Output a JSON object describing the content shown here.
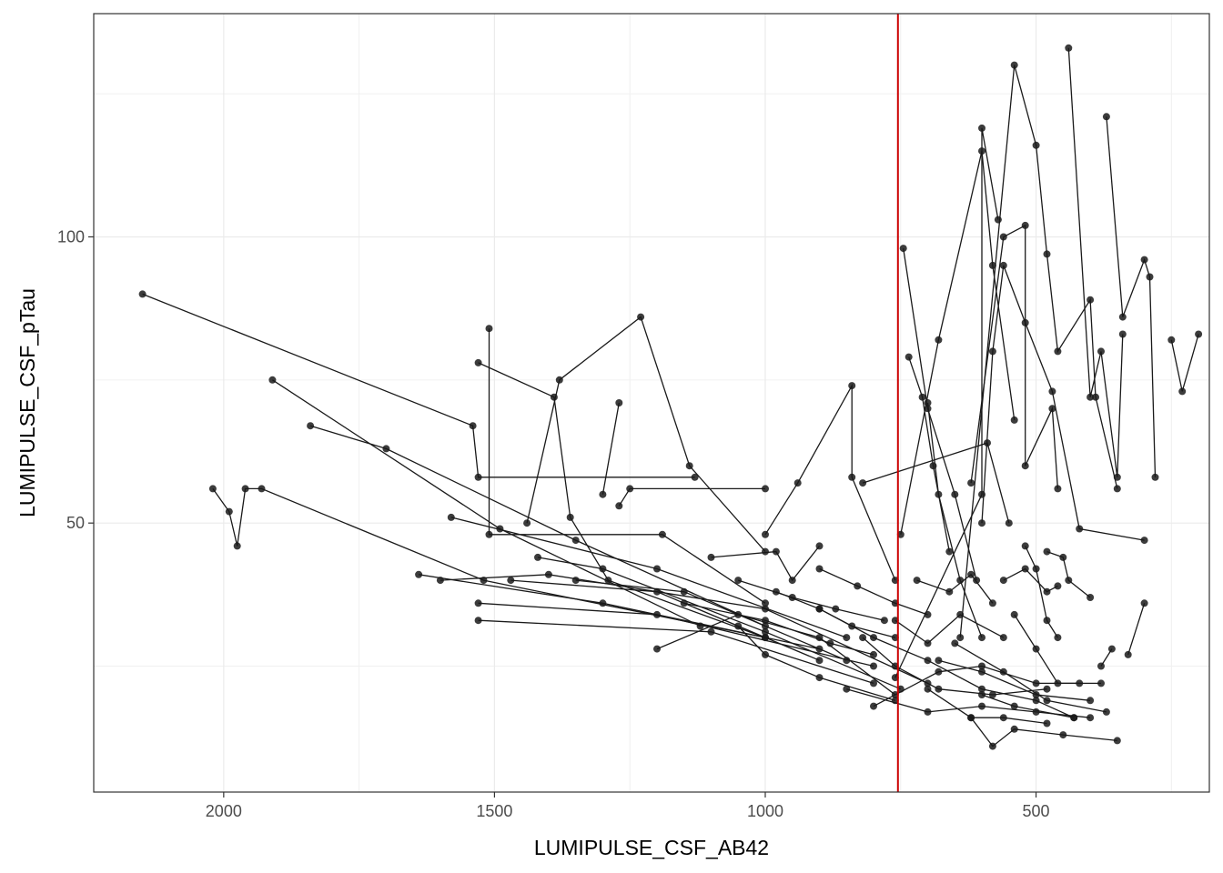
{
  "chart_data": {
    "type": "scatter",
    "title": "",
    "xlabel": "LUMIPULSE_CSF_AB42",
    "ylabel": "LUMIPULSE_CSF_pTau",
    "x_reversed": true,
    "xlim": [
      2240,
      180
    ],
    "ylim": [
      3,
      139
    ],
    "x_ticks": [
      2000,
      1500,
      1000,
      500
    ],
    "x_tick_labels": [
      "2000",
      "1500",
      "1000",
      "500"
    ],
    "y_ticks": [
      50,
      100
    ],
    "y_tick_labels": [
      "50",
      "100"
    ],
    "grid": true,
    "legend": "none",
    "cutoff_line": {
      "axis": "x",
      "value": 755,
      "color": "#cc0000"
    },
    "point_color": "#1a1a1a",
    "line_color": "#1a1a1a",
    "trajectories": [
      [
        [
          2150,
          90
        ],
        [
          1540,
          67
        ],
        [
          1530,
          58
        ],
        [
          1130,
          58
        ]
      ],
      [
        [
          1910,
          75
        ],
        [
          1490,
          49
        ],
        [
          1120,
          32
        ]
      ],
      [
        [
          1840,
          67
        ],
        [
          1700,
          63
        ],
        [
          1350,
          47
        ],
        [
          1000,
          32
        ]
      ],
      [
        [
          2020,
          56
        ],
        [
          1990,
          52
        ],
        [
          1975,
          46
        ],
        [
          1960,
          56
        ],
        [
          1930,
          56
        ],
        [
          1520,
          40
        ],
        [
          1000,
          30
        ]
      ],
      [
        [
          1510,
          84
        ],
        [
          1510,
          48
        ],
        [
          1190,
          48
        ],
        [
          1000,
          36
        ]
      ],
      [
        [
          1530,
          78
        ],
        [
          1390,
          72
        ],
        [
          1360,
          51
        ],
        [
          1290,
          40
        ],
        [
          1000,
          30
        ]
      ],
      [
        [
          1440,
          50
        ],
        [
          1380,
          75
        ],
        [
          1230,
          86
        ],
        [
          1140,
          60
        ],
        [
          1000,
          45
        ]
      ],
      [
        [
          1300,
          55
        ],
        [
          1270,
          71
        ]
      ],
      [
        [
          1270,
          53
        ],
        [
          1250,
          56
        ],
        [
          1000,
          56
        ]
      ],
      [
        [
          1640,
          41
        ],
        [
          1300,
          36
        ],
        [
          900,
          28
        ]
      ],
      [
        [
          1580,
          51
        ],
        [
          1200,
          42
        ],
        [
          850,
          30
        ]
      ],
      [
        [
          1530,
          33
        ],
        [
          1100,
          31
        ],
        [
          800,
          22
        ]
      ],
      [
        [
          1530,
          36
        ],
        [
          1200,
          34
        ],
        [
          800,
          25
        ]
      ],
      [
        [
          1600,
          40
        ],
        [
          1400,
          41
        ],
        [
          1000,
          35
        ],
        [
          700,
          22
        ]
      ],
      [
        [
          1470,
          40
        ],
        [
          1200,
          38
        ],
        [
          900,
          26
        ]
      ],
      [
        [
          1420,
          44
        ],
        [
          1300,
          42
        ],
        [
          1000,
          31
        ],
        [
          750,
          21
        ]
      ],
      [
        [
          1350,
          40
        ],
        [
          1150,
          38
        ],
        [
          850,
          26
        ]
      ],
      [
        [
          1200,
          28
        ],
        [
          1050,
          34
        ],
        [
          900,
          30
        ],
        [
          760,
          20
        ]
      ],
      [
        [
          1100,
          44
        ],
        [
          980,
          45
        ],
        [
          950,
          40
        ],
        [
          900,
          46
        ]
      ],
      [
        [
          1000,
          48
        ],
        [
          940,
          57
        ],
        [
          840,
          74
        ],
        [
          840,
          58
        ],
        [
          760,
          40
        ]
      ],
      [
        [
          1050,
          32
        ],
        [
          1000,
          27
        ],
        [
          900,
          23
        ],
        [
          760,
          19
        ]
      ],
      [
        [
          820,
          57
        ],
        [
          590,
          64
        ],
        [
          550,
          50
        ]
      ],
      [
        [
          745,
          98
        ],
        [
          700,
          70
        ],
        [
          650,
          55
        ],
        [
          610,
          40
        ]
      ],
      [
        [
          735,
          79
        ],
        [
          710,
          72
        ],
        [
          690,
          60
        ],
        [
          660,
          45
        ]
      ],
      [
        [
          700,
          71
        ],
        [
          680,
          55
        ],
        [
          640,
          40
        ],
        [
          600,
          30
        ]
      ],
      [
        [
          750,
          48
        ],
        [
          680,
          82
        ],
        [
          600,
          115
        ],
        [
          580,
          95
        ],
        [
          540,
          68
        ]
      ],
      [
        [
          760,
          23
        ],
        [
          600,
          55
        ],
        [
          600,
          119
        ],
        [
          570,
          103
        ]
      ],
      [
        [
          640,
          30
        ],
        [
          540,
          130
        ],
        [
          500,
          116
        ],
        [
          480,
          97
        ],
        [
          460,
          80
        ],
        [
          400,
          89
        ],
        [
          390,
          72
        ],
        [
          350,
          56
        ]
      ],
      [
        [
          620,
          57
        ],
        [
          560,
          100
        ],
        [
          520,
          102
        ],
        [
          520,
          60
        ],
        [
          470,
          70
        ],
        [
          460,
          56
        ]
      ],
      [
        [
          600,
          50
        ],
        [
          580,
          80
        ],
        [
          560,
          95
        ],
        [
          520,
          85
        ],
        [
          470,
          73
        ],
        [
          420,
          49
        ],
        [
          300,
          47
        ]
      ],
      [
        [
          440,
          133
        ],
        [
          400,
          72
        ],
        [
          380,
          80
        ],
        [
          350,
          58
        ],
        [
          340,
          83
        ]
      ],
      [
        [
          370,
          121
        ],
        [
          340,
          86
        ],
        [
          300,
          96
        ],
        [
          290,
          93
        ],
        [
          280,
          58
        ]
      ],
      [
        [
          250,
          82
        ],
        [
          230,
          73
        ],
        [
          200,
          83
        ]
      ],
      [
        [
          800,
          18
        ],
        [
          680,
          24
        ],
        [
          600,
          25
        ],
        [
          500,
          22
        ],
        [
          380,
          22
        ]
      ],
      [
        [
          850,
          21
        ],
        [
          700,
          17
        ],
        [
          600,
          18
        ],
        [
          500,
          17
        ],
        [
          400,
          16
        ]
      ],
      [
        [
          700,
          21
        ],
        [
          620,
          16
        ],
        [
          560,
          16
        ],
        [
          480,
          15
        ]
      ],
      [
        [
          680,
          26
        ],
        [
          600,
          24
        ],
        [
          500,
          20
        ],
        [
          400,
          19
        ]
      ],
      [
        [
          650,
          29
        ],
        [
          560,
          24
        ],
        [
          480,
          19
        ],
        [
          370,
          17
        ]
      ],
      [
        [
          620,
          16
        ],
        [
          580,
          11
        ],
        [
          540,
          14
        ],
        [
          450,
          13
        ],
        [
          350,
          12
        ]
      ],
      [
        [
          600,
          20
        ],
        [
          540,
          18
        ],
        [
          430,
          16
        ]
      ],
      [
        [
          900,
          35
        ],
        [
          800,
          30
        ],
        [
          700,
          26
        ],
        [
          600,
          21
        ],
        [
          500,
          19
        ],
        [
          430,
          16
        ]
      ],
      [
        [
          820,
          30
        ],
        [
          760,
          25
        ],
        [
          680,
          21
        ],
        [
          580,
          20
        ],
        [
          480,
          21
        ]
      ],
      [
        [
          560,
          40
        ],
        [
          520,
          42
        ],
        [
          480,
          38
        ],
        [
          460,
          39
        ]
      ],
      [
        [
          540,
          34
        ],
        [
          500,
          28
        ],
        [
          460,
          22
        ],
        [
          420,
          22
        ]
      ],
      [
        [
          520,
          46
        ],
        [
          500,
          42
        ],
        [
          480,
          33
        ],
        [
          460,
          30
        ]
      ],
      [
        [
          480,
          45
        ],
        [
          450,
          44
        ],
        [
          440,
          40
        ],
        [
          400,
          37
        ]
      ],
      [
        [
          380,
          25
        ],
        [
          360,
          28
        ]
      ],
      [
        [
          330,
          27
        ],
        [
          300,
          36
        ]
      ],
      [
        [
          720,
          40
        ],
        [
          660,
          38
        ],
        [
          620,
          41
        ],
        [
          580,
          36
        ]
      ],
      [
        [
          760,
          33
        ],
        [
          700,
          29
        ],
        [
          640,
          34
        ],
        [
          560,
          30
        ]
      ],
      [
        [
          980,
          38
        ],
        [
          900,
          35
        ],
        [
          840,
          32
        ],
        [
          760,
          30
        ]
      ],
      [
        [
          1150,
          36
        ],
        [
          1000,
          33
        ],
        [
          880,
          29
        ],
        [
          800,
          27
        ]
      ],
      [
        [
          1050,
          40
        ],
        [
          950,
          37
        ],
        [
          870,
          35
        ],
        [
          780,
          33
        ]
      ],
      [
        [
          900,
          42
        ],
        [
          830,
          39
        ],
        [
          760,
          36
        ],
        [
          700,
          34
        ]
      ]
    ]
  }
}
